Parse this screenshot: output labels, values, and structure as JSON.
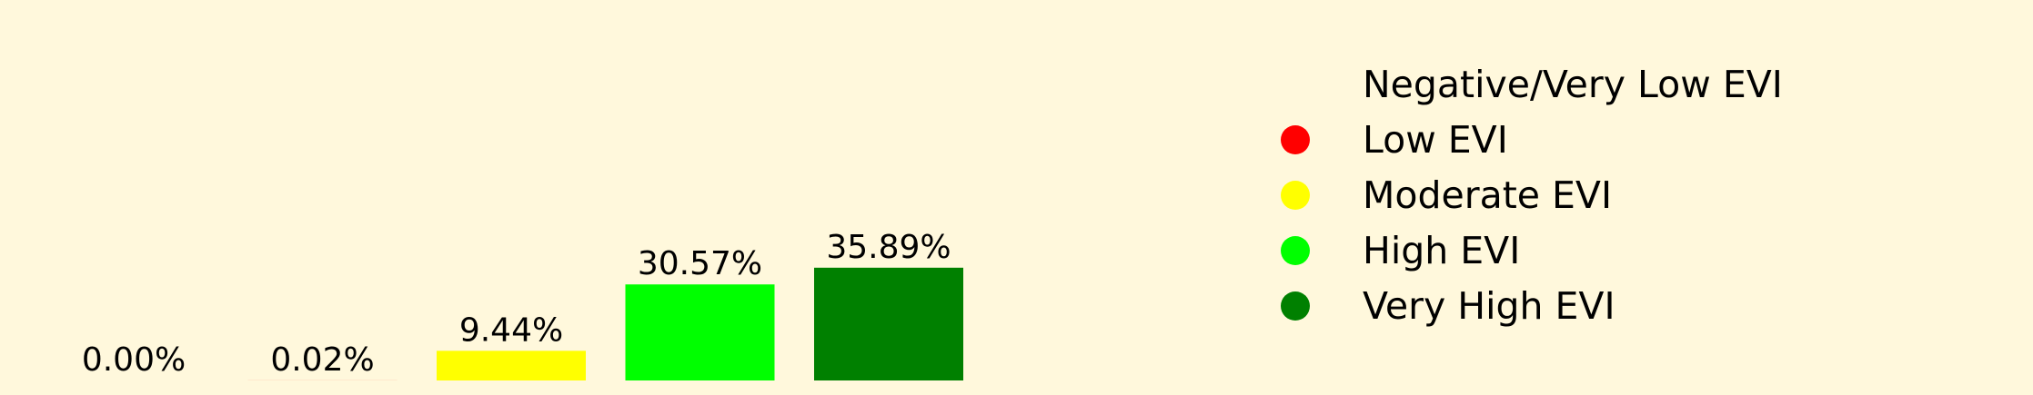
{
  "chart_data": {
    "type": "bar",
    "categories": [
      "Negative/Very Low EVI",
      "Low EVI",
      "Moderate EVI",
      "High EVI",
      "Very High EVI"
    ],
    "values": [
      0.0,
      0.02,
      9.44,
      30.57,
      35.89
    ],
    "data_labels": [
      "0.00%",
      "0.02%",
      "9.44%",
      "30.57%",
      "35.89%"
    ],
    "colors": [
      "#fff8dc",
      "#ff0000",
      "#ffff00",
      "#00ff00",
      "#008000"
    ],
    "title": "",
    "xlabel": "",
    "ylabel": "",
    "ylim": [
      0,
      100
    ],
    "grid": false,
    "legend": {
      "placement": "right",
      "entries": [
        {
          "label": "Negative/Very Low EVI",
          "color": "#fff8dc"
        },
        {
          "label": "Low EVI",
          "color": "#ff0000"
        },
        {
          "label": "Moderate EVI",
          "color": "#ffff00"
        },
        {
          "label": "High EVI",
          "color": "#00ff00"
        },
        {
          "label": "Very High EVI",
          "color": "#008000"
        }
      ]
    }
  }
}
